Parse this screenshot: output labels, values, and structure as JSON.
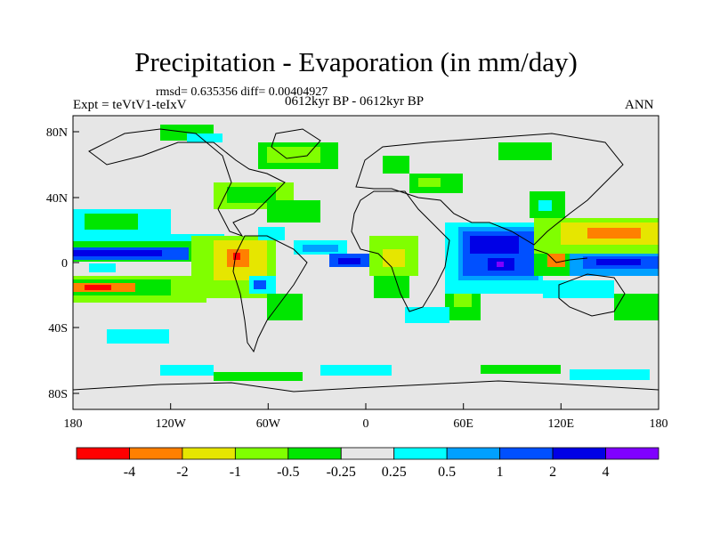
{
  "title": "Precipitation - Evaporation (in mm/day)",
  "stats": "rmsd= 0.635356 diff= 0.00404927",
  "experiment": "Expt = teVtV1-teIxV",
  "period": "0612kyr BP - 0612kyr BP",
  "season": "ANN",
  "lat_labels": [
    "80N",
    "40N",
    "0",
    "40S",
    "80S"
  ],
  "lon_labels": [
    "180",
    "120W",
    "60W",
    "0",
    "60E",
    "120E",
    "180"
  ],
  "colorbar": {
    "colors": [
      "#ff0000",
      "#ff8000",
      "#e6e600",
      "#80ff00",
      "#00e600",
      "#e6e6e6",
      "#00ffff",
      "#00a0ff",
      "#0050ff",
      "#0000e6",
      "#8000ff"
    ],
    "labels": [
      "-4",
      "-2",
      "-1",
      "-0.5",
      "-0.25",
      "0.25",
      "0.5",
      "1",
      "2",
      "4"
    ]
  },
  "chart_data": {
    "type": "map-contour",
    "variable": "Precipitation - Evaporation difference",
    "units": "mm/day",
    "lon_range": [
      -180,
      180
    ],
    "lat_range": [
      -90,
      90
    ],
    "levels": [
      -4,
      -2,
      -1,
      -0.5,
      -0.25,
      0.25,
      0.5,
      1,
      2,
      4
    ],
    "rmsd": 0.635356,
    "diff": 0.00404927
  }
}
